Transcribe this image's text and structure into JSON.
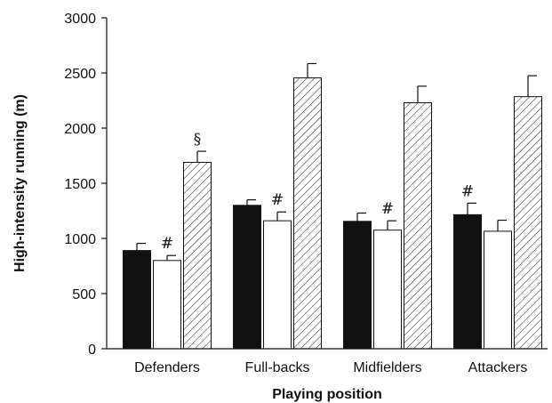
{
  "chart_data": {
    "type": "bar",
    "title": "",
    "xlabel": "Playing position",
    "ylabel": "High-intensity running (m)",
    "ylim": [
      0,
      3000
    ],
    "yticks": [
      0,
      500,
      1000,
      1500,
      2000,
      2500,
      3000
    ],
    "ytick_labels": [
      "0",
      "500",
      "1000",
      "1500",
      "2000",
      "2500",
      "3000"
    ],
    "grid": false,
    "legend": "none",
    "categories": [
      "Defenders",
      "Full-backs",
      "Midfielders",
      "Attackers"
    ],
    "series": [
      {
        "fill": "solid-black",
        "color": "#111111",
        "values": [
          890,
          1300,
          1155,
          1215
        ],
        "errors": [
          65,
          50,
          75,
          105
        ]
      },
      {
        "fill": "white",
        "color": "#ffffff",
        "values": [
          800,
          1160,
          1075,
          1065
        ],
        "errors": [
          45,
          80,
          85,
          100
        ]
      },
      {
        "fill": "diagonal-hatch",
        "color": "#ffffff",
        "values": [
          1690,
          2455,
          2230,
          2285
        ],
        "errors": [
          100,
          130,
          150,
          190
        ]
      }
    ],
    "annotations": [
      {
        "category": "Defenders",
        "series": 1,
        "text": "#"
      },
      {
        "category": "Full-backs",
        "series": 1,
        "text": "#"
      },
      {
        "category": "Midfielders",
        "series": 1,
        "text": "#"
      },
      {
        "category": "Attackers",
        "series": 0,
        "text": "#"
      },
      {
        "category": "Defenders",
        "series": 2,
        "text": "§"
      }
    ]
  }
}
